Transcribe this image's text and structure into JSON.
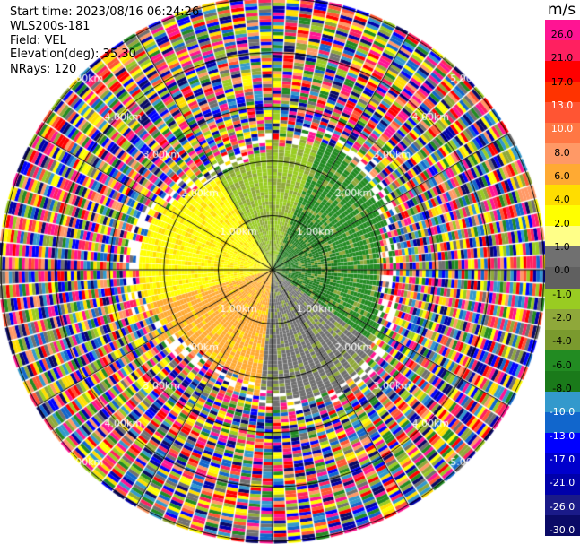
{
  "header": {
    "start_time": "Start time: 2023/08/16 06:24:26",
    "site": "WLS200s-181",
    "field": "Field: VEL",
    "elevation": "Elevation(deg): 35.30",
    "nrays": "NRays: 120"
  },
  "colorbar": {
    "unit": "m/s",
    "ticks": [
      "26.0",
      "21.0",
      "17.0",
      "13.0",
      "10.0",
      "8.0",
      "6.0",
      "4.0",
      "2.0",
      "1.0",
      "0.0",
      "-1.0",
      "-2.0",
      "-4.0",
      "-6.0",
      "-8.0",
      "-10.0",
      "-13.0",
      "-17.0",
      "-21.0",
      "-26.0",
      "-30.0"
    ],
    "colors": [
      "#ff1493",
      "#ff2060",
      "#ff0000",
      "#ff3300",
      "#ff5533",
      "#ff7744",
      "#ff9966",
      "#ffaa33",
      "#ffdd00",
      "#ffff00",
      "#ffff88",
      "#707070",
      "#606060",
      "#99cc22",
      "#8fa83a",
      "#7a9a2e",
      "#228b22",
      "#1a7a1a",
      "#3399cc",
      "#1166cc",
      "#0000ff",
      "#0000cc",
      "#0000aa",
      "#1a1a88",
      "#0a0a66"
    ]
  },
  "chart_data": {
    "type": "heatmap",
    "title": "",
    "projection": "polar-ppi",
    "field": "VEL",
    "units": "m/s",
    "nrays": 120,
    "elevation_deg": 35.3,
    "range_rings_km": [
      1.0,
      2.0,
      3.0,
      4.0,
      5.0
    ],
    "ring_labels": [
      "1.00km",
      "2.00km",
      "3.00km",
      "4.00km",
      "5.00km"
    ],
    "max_range_km": 5.0,
    "colorbar_range": [
      -30.0,
      26.0
    ],
    "valid_data_extent_km": 2.2,
    "region_summary": [
      {
        "sector": "north-east",
        "approx_velocity_ms": -5.0,
        "color": "green"
      },
      {
        "sector": "west",
        "approx_velocity_ms": 2.0,
        "color": "yellow"
      },
      {
        "sector": "south-west",
        "approx_velocity_ms": 6.0,
        "color": "orange"
      },
      {
        "sector": "south-east",
        "approx_velocity_ms": 0.0,
        "color": "gray"
      }
    ],
    "outer_region": "noise (random colors)"
  }
}
